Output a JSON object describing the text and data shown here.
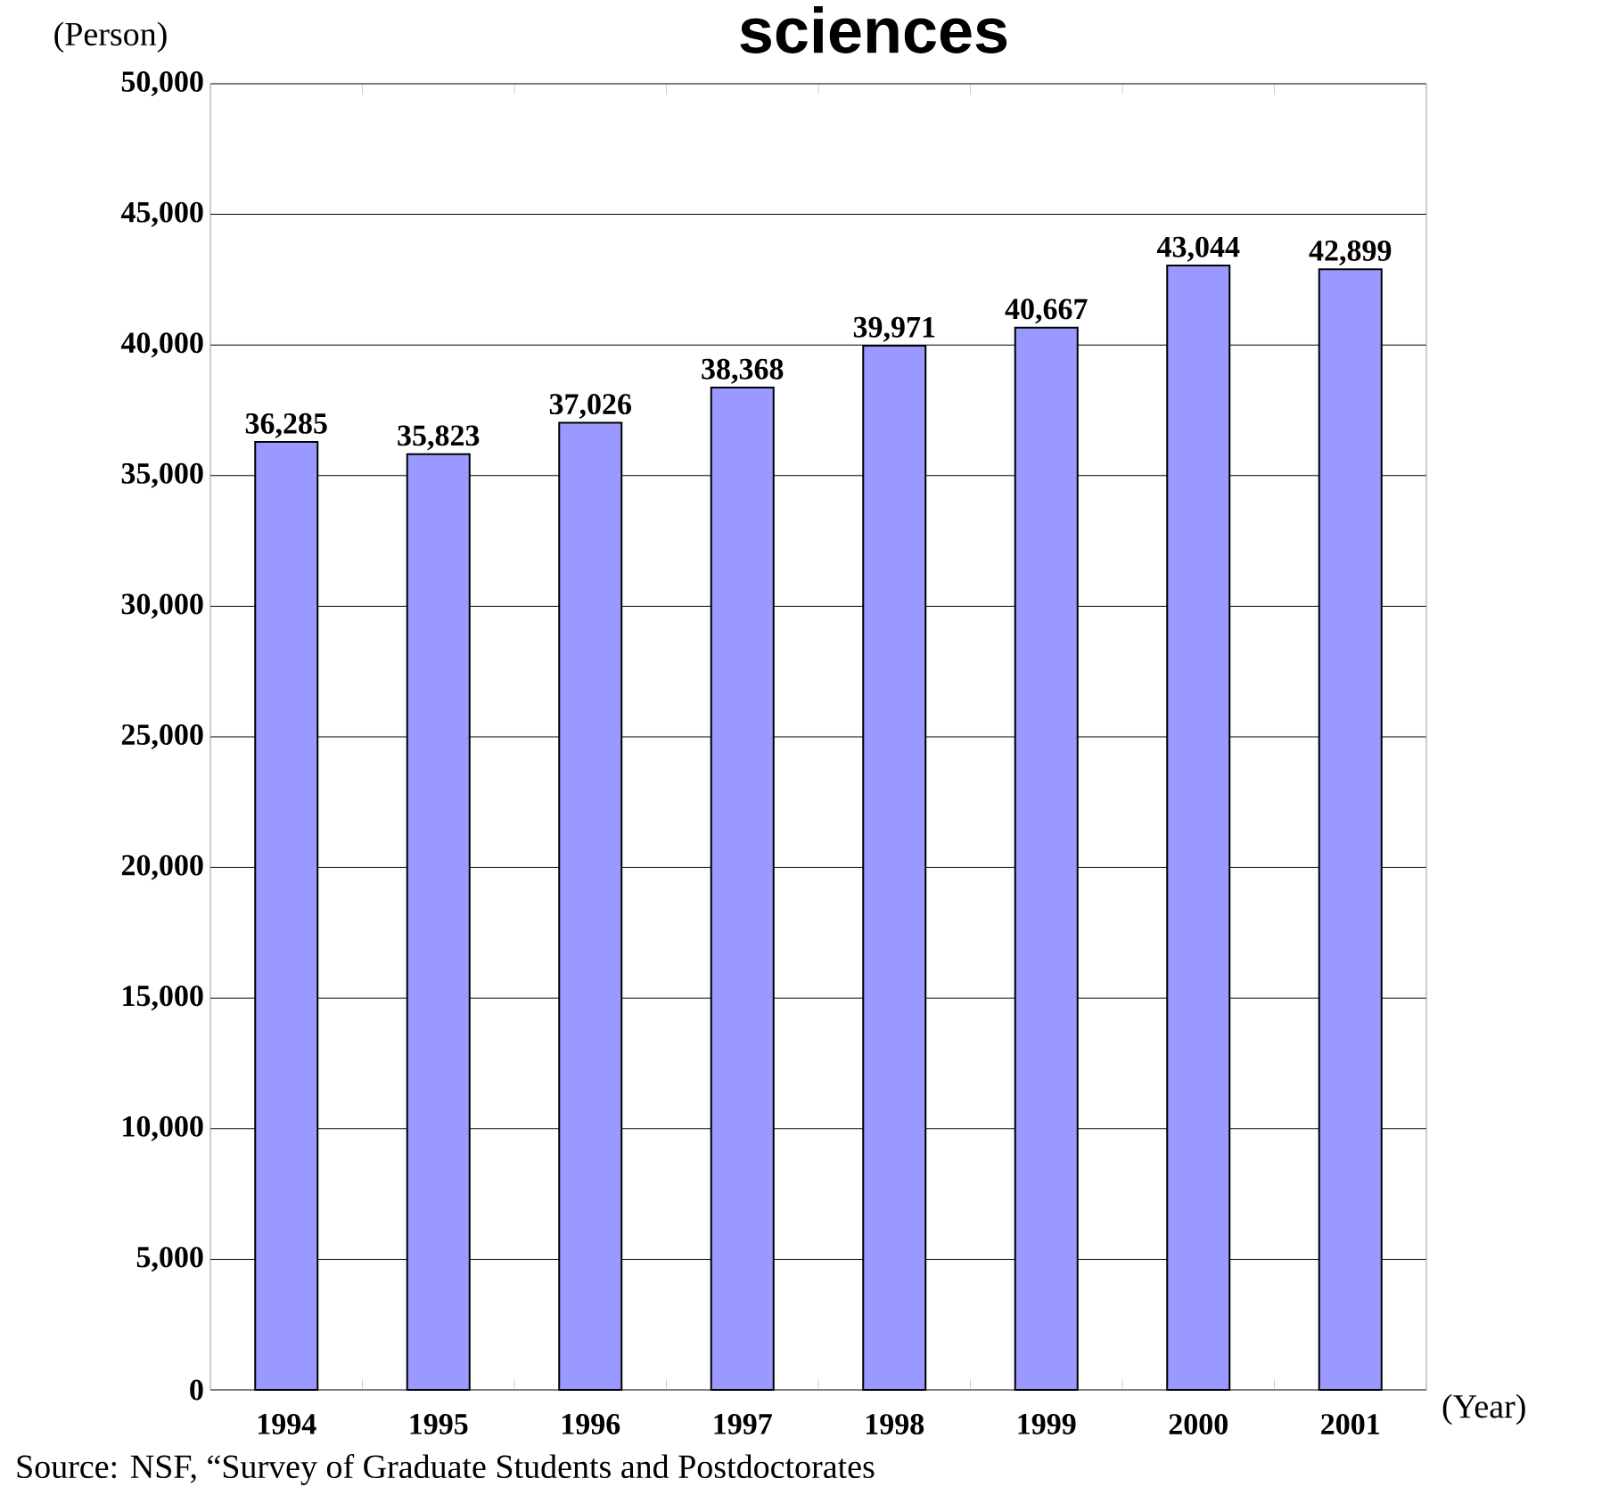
{
  "chart_data": {
    "type": "bar",
    "title": "sciences",
    "ylabel": "(Person)",
    "xlabel": "(Year)",
    "categories": [
      "1994",
      "1995",
      "1996",
      "1997",
      "1998",
      "1999",
      "2000",
      "2001"
    ],
    "values": [
      36285,
      35823,
      37026,
      38368,
      39971,
      40667,
      43044,
      42899
    ],
    "value_labels": [
      "36,285",
      "35,823",
      "37,026",
      "38,368",
      "39,971",
      "40,667",
      "43,044",
      "42,899"
    ],
    "color": "#9999ff",
    "ylim": [
      0,
      50000
    ],
    "yticks": [
      {
        "value": 0,
        "label": "0"
      },
      {
        "value": 5000,
        "label": "5,000"
      },
      {
        "value": 10000,
        "label": "10,000"
      },
      {
        "value": 15000,
        "label": "15,000"
      },
      {
        "value": 20000,
        "label": "20,000"
      },
      {
        "value": 25000,
        "label": "25,000"
      },
      {
        "value": 30000,
        "label": "30,000"
      },
      {
        "value": 35000,
        "label": "35,000"
      },
      {
        "value": 40000,
        "label": "40,000"
      },
      {
        "value": 45000,
        "label": "45,000"
      },
      {
        "value": 50000,
        "label": "50,000"
      }
    ],
    "grid": "y",
    "annotations": [
      "Source: NSF, “Survey of Graduate Students and Postdoctorates"
    ]
  }
}
